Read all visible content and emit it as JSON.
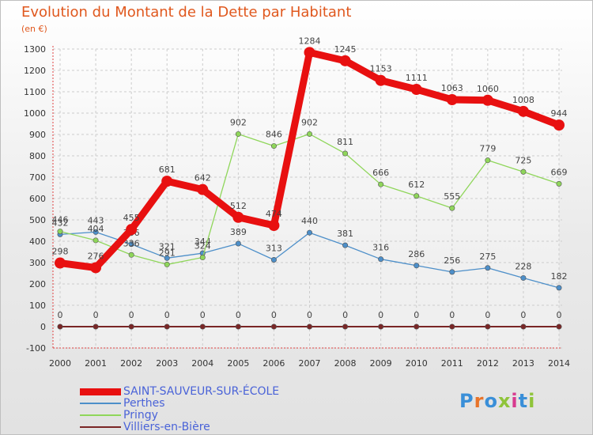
{
  "title": "Evolution du Montant de la Dette par Habitant",
  "unit": "(en €)",
  "logo": "Proxiti",
  "chart_data": {
    "type": "line",
    "x": [
      "2000",
      "2001",
      "2002",
      "2003",
      "2004",
      "2005",
      "2006",
      "2007",
      "2008",
      "2009",
      "2010",
      "2011",
      "2012",
      "2013",
      "2014"
    ],
    "ylim": [
      -100,
      1300
    ],
    "yticks": [
      -100,
      0,
      100,
      200,
      300,
      400,
      500,
      600,
      700,
      800,
      900,
      1000,
      1100,
      1200,
      1300
    ],
    "grid": true,
    "legend_position": "bottom-left",
    "series": [
      {
        "name": "SAINT-SAUVEUR-SUR-ÉCOLE",
        "color": "#e81010",
        "values": [
          298,
          276,
          455,
          681,
          642,
          512,
          474,
          1284,
          1245,
          1153,
          1111,
          1063,
          1060,
          1008,
          944
        ]
      },
      {
        "name": "Perthes",
        "color": "#4d8fc9",
        "values": [
          432,
          443,
          386,
          321,
          344,
          389,
          313,
          440,
          381,
          316,
          286,
          256,
          275,
          228,
          182
        ]
      },
      {
        "name": "Pringy",
        "color": "#8fd65a",
        "values": [
          446,
          404,
          336,
          291,
          324,
          902,
          846,
          902,
          811,
          666,
          612,
          555,
          779,
          725,
          669
        ]
      },
      {
        "name": "Villiers-en-Bière",
        "color": "#7a2626",
        "values": [
          0,
          0,
          0,
          0,
          0,
          0,
          0,
          0,
          0,
          0,
          0,
          0,
          0,
          0,
          0
        ]
      }
    ]
  }
}
